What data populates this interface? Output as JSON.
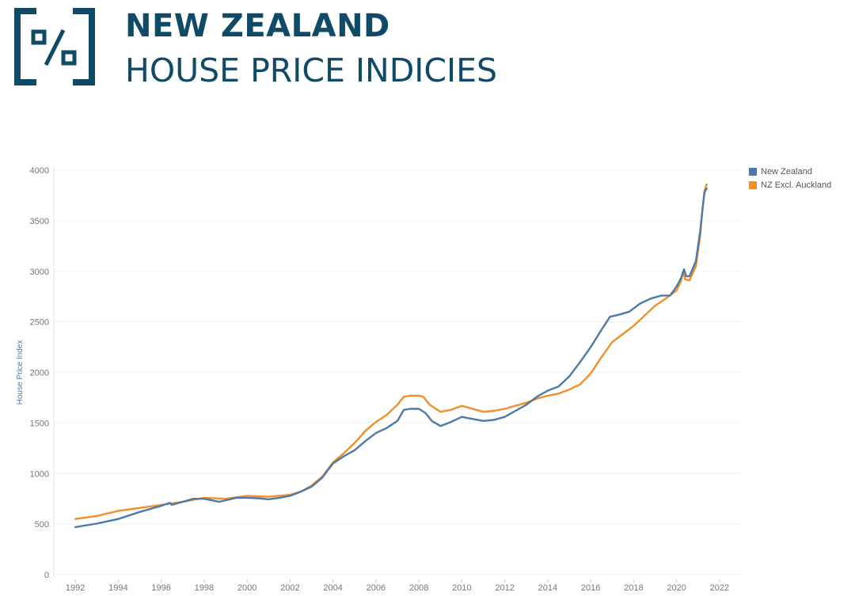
{
  "header": {
    "title": "NEW ZEALAND",
    "subtitle": "HOUSE PRICE INDICIES",
    "logo_icon": "percent-icon"
  },
  "colors": {
    "brand": "#0f4a66",
    "nz": "#4e79a7",
    "nz_excl_auckland": "#f28e2b"
  },
  "chart_data": {
    "type": "line",
    "title": "",
    "xlabel": "",
    "ylabel": "House Price Index",
    "xlim": [
      1991.0,
      2023.0
    ],
    "ylim": [
      0,
      4000
    ],
    "x_ticks": [
      "1992",
      "1994",
      "1996",
      "1998",
      "2000",
      "2002",
      "2004",
      "2006",
      "2008",
      "2010",
      "2012",
      "2014",
      "2016",
      "2018",
      "2020",
      "2022"
    ],
    "y_ticks": [
      "0",
      "500",
      "1000",
      "1500",
      "2000",
      "2500",
      "3000",
      "3500",
      "4000"
    ],
    "grid": true,
    "legend_position": "top-right",
    "series": [
      {
        "name": "New Zealand",
        "color": "#4e79a7",
        "points": [
          [
            1992.0,
            470
          ],
          [
            1993.0,
            505
          ],
          [
            1994.0,
            550
          ],
          [
            1995.0,
            620
          ],
          [
            1996.0,
            680
          ],
          [
            1996.4,
            710
          ],
          [
            1996.5,
            690
          ],
          [
            1997.0,
            720
          ],
          [
            1997.5,
            750
          ],
          [
            1998.0,
            750
          ],
          [
            1998.7,
            720
          ],
          [
            1999.5,
            760
          ],
          [
            2000.0,
            760
          ],
          [
            2000.5,
            755
          ],
          [
            2001.0,
            745
          ],
          [
            2001.5,
            760
          ],
          [
            2002.0,
            780
          ],
          [
            2002.5,
            820
          ],
          [
            2003.0,
            870
          ],
          [
            2003.5,
            960
          ],
          [
            2004.0,
            1100
          ],
          [
            2004.5,
            1170
          ],
          [
            2005.0,
            1230
          ],
          [
            2005.5,
            1320
          ],
          [
            2006.0,
            1400
          ],
          [
            2006.5,
            1450
          ],
          [
            2007.0,
            1520
          ],
          [
            2007.3,
            1630
          ],
          [
            2007.6,
            1640
          ],
          [
            2008.0,
            1640
          ],
          [
            2008.3,
            1600
          ],
          [
            2008.6,
            1520
          ],
          [
            2009.0,
            1470
          ],
          [
            2009.5,
            1510
          ],
          [
            2010.0,
            1560
          ],
          [
            2010.5,
            1540
          ],
          [
            2011.0,
            1520
          ],
          [
            2011.5,
            1530
          ],
          [
            2012.0,
            1560
          ],
          [
            2012.5,
            1620
          ],
          [
            2013.0,
            1680
          ],
          [
            2013.5,
            1760
          ],
          [
            2014.0,
            1820
          ],
          [
            2014.5,
            1860
          ],
          [
            2015.0,
            1960
          ],
          [
            2015.5,
            2100
          ],
          [
            2016.0,
            2250
          ],
          [
            2016.5,
            2420
          ],
          [
            2016.9,
            2550
          ],
          [
            2017.3,
            2570
          ],
          [
            2017.8,
            2600
          ],
          [
            2018.3,
            2680
          ],
          [
            2018.8,
            2730
          ],
          [
            2019.3,
            2760
          ],
          [
            2019.7,
            2760
          ],
          [
            2020.0,
            2850
          ],
          [
            2020.2,
            2930
          ],
          [
            2020.35,
            3020
          ],
          [
            2020.45,
            2950
          ],
          [
            2020.6,
            2950
          ],
          [
            2020.9,
            3100
          ],
          [
            2021.1,
            3400
          ],
          [
            2021.2,
            3600
          ],
          [
            2021.3,
            3780
          ],
          [
            2021.4,
            3820
          ]
        ]
      },
      {
        "name": "NZ Excl. Auckland",
        "color": "#f28e2b",
        "points": [
          [
            1992.0,
            550
          ],
          [
            1993.0,
            580
          ],
          [
            1994.0,
            630
          ],
          [
            1995.0,
            660
          ],
          [
            1996.0,
            690
          ],
          [
            1997.0,
            720
          ],
          [
            1998.0,
            760
          ],
          [
            1999.0,
            750
          ],
          [
            2000.0,
            780
          ],
          [
            2001.0,
            770
          ],
          [
            2002.0,
            790
          ],
          [
            2002.5,
            820
          ],
          [
            2003.0,
            880
          ],
          [
            2003.5,
            970
          ],
          [
            2004.0,
            1110
          ],
          [
            2004.5,
            1200
          ],
          [
            2005.0,
            1300
          ],
          [
            2005.5,
            1420
          ],
          [
            2006.0,
            1510
          ],
          [
            2006.5,
            1580
          ],
          [
            2007.0,
            1680
          ],
          [
            2007.3,
            1760
          ],
          [
            2007.6,
            1770
          ],
          [
            2008.0,
            1770
          ],
          [
            2008.2,
            1760
          ],
          [
            2008.5,
            1680
          ],
          [
            2009.0,
            1610
          ],
          [
            2009.5,
            1630
          ],
          [
            2010.0,
            1670
          ],
          [
            2010.5,
            1640
          ],
          [
            2011.0,
            1610
          ],
          [
            2011.5,
            1620
          ],
          [
            2012.0,
            1640
          ],
          [
            2012.5,
            1670
          ],
          [
            2013.0,
            1700
          ],
          [
            2013.5,
            1740
          ],
          [
            2014.0,
            1770
          ],
          [
            2014.5,
            1790
          ],
          [
            2015.0,
            1830
          ],
          [
            2015.5,
            1880
          ],
          [
            2016.0,
            1990
          ],
          [
            2016.5,
            2150
          ],
          [
            2017.0,
            2300
          ],
          [
            2017.5,
            2380
          ],
          [
            2018.0,
            2460
          ],
          [
            2018.5,
            2560
          ],
          [
            2019.0,
            2660
          ],
          [
            2019.5,
            2730
          ],
          [
            2020.0,
            2810
          ],
          [
            2020.2,
            2900
          ],
          [
            2020.3,
            2990
          ],
          [
            2020.4,
            2920
          ],
          [
            2020.6,
            2910
          ],
          [
            2020.9,
            3050
          ],
          [
            2021.1,
            3350
          ],
          [
            2021.2,
            3600
          ],
          [
            2021.3,
            3800
          ],
          [
            2021.4,
            3860
          ]
        ]
      }
    ]
  }
}
